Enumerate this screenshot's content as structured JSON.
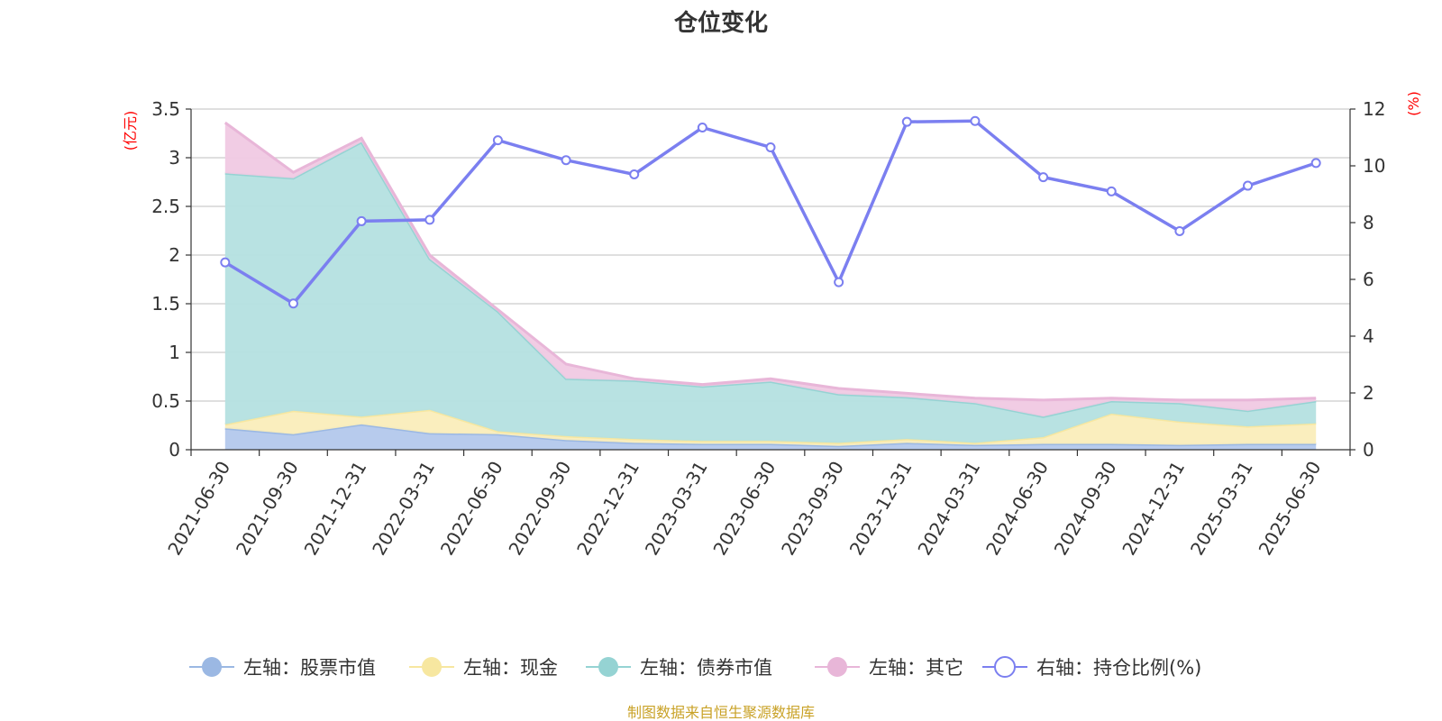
{
  "chart_data": {
    "type": "area",
    "title": "仓位变化",
    "left_unit": "(亿元)",
    "right_unit": "(%)",
    "categories": [
      "2021-06-30",
      "2021-09-30",
      "2021-12-31",
      "2022-03-31",
      "2022-06-30",
      "2022-09-30",
      "2022-12-31",
      "2023-03-31",
      "2023-06-30",
      "2023-09-30",
      "2023-12-31",
      "2024-03-31",
      "2024-06-30",
      "2024-09-30",
      "2024-12-31",
      "2025-03-31",
      "2025-06-30"
    ],
    "left_axis": {
      "min": 0,
      "max": 3.5,
      "ticks": [
        "0",
        "0.5",
        "1",
        "1.5",
        "2",
        "2.5",
        "3",
        "3.5"
      ],
      "tick_values": [
        0,
        0.5,
        1,
        1.5,
        2,
        2.5,
        3,
        3.5
      ]
    },
    "right_axis": {
      "min": 0,
      "max": 12,
      "ticks": [
        "0",
        "2",
        "4",
        "6",
        "8",
        "10",
        "12"
      ],
      "tick_values": [
        0,
        2,
        4,
        6,
        8,
        10,
        12
      ]
    },
    "stacked_series": [
      {
        "name": "左轴：股票市值",
        "color": "#9bb8e3",
        "fill": "#b3c8ec",
        "values": [
          0.22,
          0.16,
          0.26,
          0.17,
          0.16,
          0.1,
          0.07,
          0.06,
          0.06,
          0.04,
          0.07,
          0.05,
          0.06,
          0.06,
          0.05,
          0.06,
          0.06
        ]
      },
      {
        "name": "左轴：现金",
        "color": "#f7e7a0",
        "fill": "#faedba",
        "values": [
          0.04,
          0.24,
          0.08,
          0.24,
          0.03,
          0.04,
          0.04,
          0.03,
          0.03,
          0.03,
          0.04,
          0.02,
          0.07,
          0.31,
          0.24,
          0.18,
          0.21
        ]
      },
      {
        "name": "左轴：债券市值",
        "color": "#95d3d3",
        "fill": "#b4e0e0",
        "values": [
          2.58,
          2.39,
          2.82,
          1.55,
          1.23,
          0.59,
          0.6,
          0.56,
          0.61,
          0.5,
          0.43,
          0.41,
          0.21,
          0.13,
          0.19,
          0.16,
          0.23
        ]
      },
      {
        "name": "左轴：其它",
        "color": "#e8b6d8",
        "fill": "#f0c9e3",
        "values": [
          0.52,
          0.06,
          0.04,
          0.04,
          0.02,
          0.15,
          0.02,
          0.02,
          0.03,
          0.06,
          0.04,
          0.05,
          0.17,
          0.03,
          0.03,
          0.11,
          0.03
        ]
      }
    ],
    "line_series": {
      "name": "右轴：持仓比例(%)",
      "color": "#7b7ff0",
      "values": [
        6.6,
        5.15,
        8.05,
        8.1,
        10.9,
        10.2,
        9.7,
        11.35,
        10.65,
        5.9,
        11.55,
        11.58,
        9.6,
        9.1,
        7.7,
        9.3,
        10.1
      ]
    },
    "grid": true,
    "legend_position": "bottom"
  },
  "source": "制图数据来自恒生聚源数据库"
}
